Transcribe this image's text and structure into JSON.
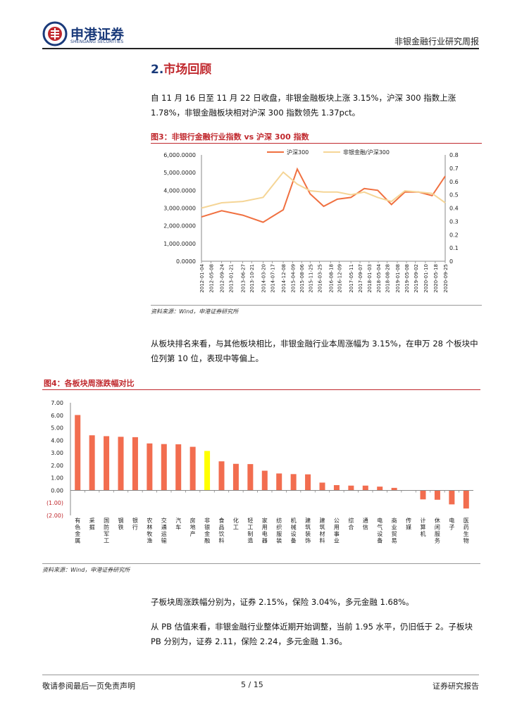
{
  "header": {
    "logo_cn": "申港证券",
    "logo_en": "SHENGANG SECURITIES",
    "report_type": "非银金融行业研究周报"
  },
  "section": {
    "number": "2.",
    "title": "市场回顾"
  },
  "paragraphs": {
    "p1": "自 11 月 16 日至 11 月 22 日收盘，非银金融板块上涨 3.15%，沪深 300 指数上涨 1.78%，非银金融板块相对沪深 300 指数领先 1.37pct。",
    "p2": "从板块排名来看，与其他板块相比，非银金融行业本周涨幅为 3.15%，在申万 28 个板块中位列第 10 位，表现中等偏上。",
    "p3": "子板块周涨跌幅分别为，证券 2.15%，保险 3.04%，多元金融 1.68%。",
    "p4": "从 PB 估值来看，非银金融行业整体近期开始调整，当前 1.95 水平，仍旧低于 2。子板块 PB 分别为，证券 2.11，保险 2.24，多元金融 1.36。"
  },
  "figure3": {
    "title": "图3：非银行金融行业指数 vs 沪深 300 指数",
    "source": "资料来源：Wind，申港证券研究所"
  },
  "figure4": {
    "title": "图4：各板块周涨跌幅对比",
    "source": "资料来源：Wind，申港证券研究所"
  },
  "footer": {
    "left": "敬请参阅最后一页免责声明",
    "page": "5 / 15",
    "right": "证券研究报告"
  },
  "colors": {
    "accent_red": "#c0282d",
    "brand_blue": "#1a3a7a",
    "series_hs300": "#f07040",
    "series_ratio": "#f5d596",
    "bar_default": "#f26d4f",
    "bar_highlight": "#ffff00"
  },
  "chart_data": [
    {
      "type": "line",
      "series": [
        {
          "name": "沪深300",
          "axis": "left",
          "x": [
            "2012-01-04",
            "2012-09-24",
            "2013-06-27",
            "2014-03-20",
            "2014-12-08",
            "2015-06-10",
            "2015-11-25",
            "2016-05-20",
            "2016-11-15",
            "2017-05-11",
            "2017-11-02",
            "2018-04-27",
            "2018-10-23",
            "2019-04-17",
            "2019-10-16",
            "2020-04-07",
            "2020-09-25"
          ],
          "values": [
            2500,
            2850,
            2600,
            2200,
            2900,
            5200,
            3800,
            3100,
            3500,
            3600,
            4100,
            4000,
            3200,
            3900,
            3900,
            3700,
            4800
          ]
        },
        {
          "name": "非银金融/沪深300",
          "axis": "right",
          "x": [
            "2012-01-04",
            "2012-09-24",
            "2013-06-27",
            "2014-03-20",
            "2014-12-08",
            "2015-06-10",
            "2015-11-25",
            "2016-05-20",
            "2016-11-15",
            "2017-05-11",
            "2017-11-02",
            "2018-04-27",
            "2018-10-23",
            "2019-04-17",
            "2019-10-16",
            "2020-04-07",
            "2020-09-25"
          ],
          "values": [
            0.4,
            0.44,
            0.45,
            0.48,
            0.67,
            0.58,
            0.53,
            0.52,
            0.52,
            0.5,
            0.52,
            0.48,
            0.45,
            0.53,
            0.52,
            0.51,
            0.44
          ]
        }
      ],
      "y_left_ticks": [
        "6,000.0000",
        "5,000.0000",
        "4,000.0000",
        "3,000.0000",
        "2,000.0000",
        "1,000.0000",
        "0.0000"
      ],
      "ylim_left": [
        0,
        6000
      ],
      "y_right_ticks": [
        "0.8",
        "0.7",
        "0.6",
        "0.5",
        "0.4",
        "0.3",
        "0.2",
        "0.1",
        "0"
      ],
      "ylim_right": [
        0,
        0.8
      ],
      "x_ticks": [
        "2012-01-04",
        "2012-05-08",
        "2012-09-24",
        "2013-01-21",
        "2013-06-27",
        "2013-10-21",
        "2014-03-20",
        "2014-07-17",
        "2014-12-08",
        "2015-04-09",
        "2015-08-06",
        "2015-11-25",
        "2016-03-25",
        "2016-08-18",
        "2016-12-09",
        "2017-05-11",
        "2017-09-07",
        "2018-01-03",
        "2018-05-04",
        "2018-08-28",
        "2019-01-08",
        "2019-05-08",
        "2019-09-02",
        "2020-01-10",
        "2020-05-18",
        "2020-09-25"
      ],
      "legend": "top-center",
      "grid": false
    },
    {
      "type": "bar",
      "categories": [
        "有色金属",
        "采掘",
        "国防军工",
        "钢铁",
        "银行",
        "农林牧渔",
        "交通运输",
        "汽车",
        "房地产",
        "非银金融",
        "食品饮料",
        "化工",
        "轻工制造",
        "家用电器",
        "纺织服装",
        "机械设备",
        "建筑装饰",
        "建筑材料",
        "公用事业",
        "综合",
        "通信",
        "电气设备",
        "商业贸易",
        "传媒",
        "计算机",
        "休闲服务",
        "电子",
        "医药生物"
      ],
      "values": [
        6.02,
        4.4,
        4.33,
        4.28,
        4.25,
        3.75,
        3.7,
        3.68,
        3.48,
        3.15,
        2.32,
        2.12,
        2.1,
        1.57,
        1.35,
        1.3,
        1.28,
        0.62,
        0.42,
        0.38,
        0.38,
        0.3,
        0.2,
        0.02,
        -0.72,
        -0.75,
        -1.12,
        -1.45
      ],
      "highlight": "非银金融",
      "y_ticks": [
        "7.00",
        "6.00",
        "5.00",
        "4.00",
        "3.00",
        "2.00",
        "1.00",
        "0.00",
        "(1.00)",
        "(2.00)"
      ],
      "ylim": [
        -2,
        7
      ],
      "grid": false
    }
  ]
}
